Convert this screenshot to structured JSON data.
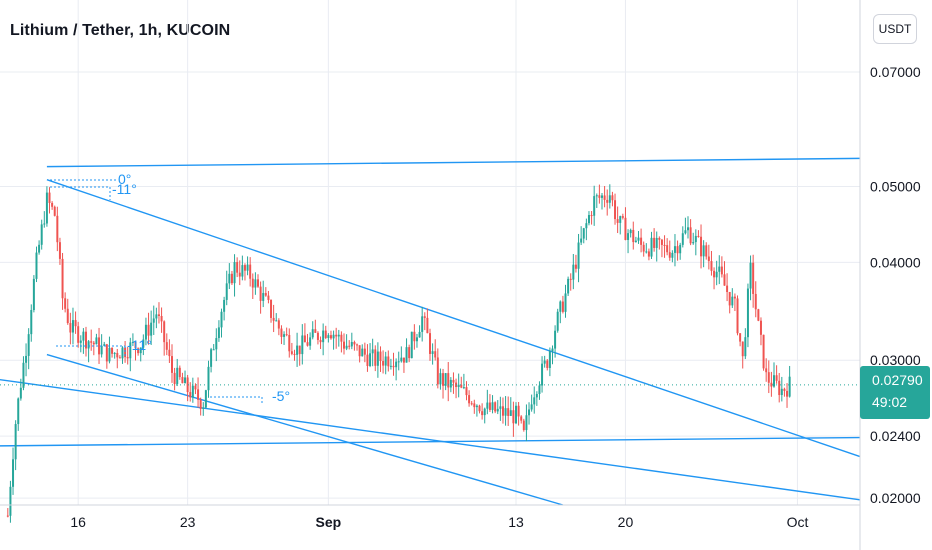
{
  "header": {
    "title": "Lithium / Tether, 1h, KUCOIN",
    "currency_button": "USDT"
  },
  "price_badge": {
    "price": "0.02790",
    "countdown": "49:02"
  },
  "colors": {
    "up": "#26a69a",
    "down": "#ef5350",
    "trendline": "#2196f3",
    "grid": "#e9ecf2",
    "axis_text": "#131722"
  },
  "annotations": [
    {
      "text": "0°"
    },
    {
      "text": "-11°"
    },
    {
      "text": "-11°"
    },
    {
      "text": "-5°"
    }
  ],
  "chart_data": {
    "type": "candlestick",
    "title": "Lithium / Tether, 1h, KUCOIN",
    "y_scale": "log",
    "ylim": [
      0.0196,
      0.0865
    ],
    "y_ticks": [
      "0.07000",
      "0.05000",
      "0.04000",
      "0.03000",
      "0.02400",
      "0.02000"
    ],
    "x_ticks": [
      "16",
      "23",
      "Sep",
      "13",
      "20",
      "Oct"
    ],
    "x_range": [
      "Aug 11",
      "Oct 5"
    ],
    "last_price": 0.0279,
    "path": [
      [
        "Aug 11 12:00",
        0.019
      ],
      [
        "Aug 12 00:00",
        0.025
      ],
      [
        "Aug 12 18:00",
        0.032
      ],
      [
        "Aug 13 08:00",
        0.04
      ],
      [
        "Aug 14 00:00",
        0.048
      ],
      [
        "Aug 14 12:00",
        0.046
      ],
      [
        "Aug 15 00:00",
        0.036
      ],
      [
        "Aug 15 12:00",
        0.033
      ],
      [
        "Aug 16 12:00",
        0.032
      ],
      [
        "Aug 18 00:00",
        0.0305
      ],
      [
        "Aug 20 00:00",
        0.0315
      ],
      [
        "Aug 21 00:00",
        0.0345
      ],
      [
        "Aug 22 00:00",
        0.029
      ],
      [
        "Aug 23 00:00",
        0.0275
      ],
      [
        "Aug 24 00:00",
        0.0265
      ],
      [
        "Aug 25 00:00",
        0.034
      ],
      [
        "Aug 26 00:00",
        0.0395
      ],
      [
        "Aug 27 00:00",
        0.0385
      ],
      [
        "Aug 28 00:00",
        0.0355
      ],
      [
        "Aug 29 00:00",
        0.0325
      ],
      [
        "Aug 30 00:00",
        0.031
      ],
      [
        "Sep 01 00:00",
        0.033
      ],
      [
        "Sep 02 00:00",
        0.0315
      ],
      [
        "Sep 04 00:00",
        0.03
      ],
      [
        "Sep 06 00:00",
        0.0305
      ],
      [
        "Sep 07 00:00",
        0.034
      ],
      [
        "Sep 08 00:00",
        0.0285
      ],
      [
        "Sep 10 00:00",
        0.027
      ],
      [
        "Sep 11 00:00",
        0.026
      ],
      [
        "Sep 13 00:00",
        0.0255
      ],
      [
        "Sep 13 12:00",
        0.024
      ],
      [
        "Sep 14 00:00",
        0.027
      ],
      [
        "Sep 15 00:00",
        0.03
      ],
      [
        "Sep 15 12:00",
        0.033
      ],
      [
        "Sep 16 12:00",
        0.038
      ],
      [
        "Sep 18 00:00",
        0.048
      ],
      [
        "Sep 19 00:00",
        0.049
      ],
      [
        "Sep 19 12:00",
        0.045
      ],
      [
        "Sep 21 00:00",
        0.042
      ],
      [
        "Sep 23 00:00",
        0.0415
      ],
      [
        "Sep 24 00:00",
        0.044
      ],
      [
        "Sep 26 00:00",
        0.0385
      ],
      [
        "Sep 27 00:00",
        0.035
      ],
      [
        "Sep 27 12:00",
        0.03
      ],
      [
        "Sep 28 00:00",
        0.039
      ],
      [
        "Sep 28 12:00",
        0.033
      ],
      [
        "Sep 29 00:00",
        0.0285
      ],
      [
        "Sep 30 00:00",
        0.0275
      ],
      [
        "Sep 30 12:00",
        0.0279
      ]
    ],
    "trendlines": [
      {
        "from": [
          "Aug 14 00:00",
          0.053
        ],
        "to": [
          "Oct 05 00:00",
          0.0543
        ]
      },
      {
        "from": [
          "Aug 14 00:00",
          0.051
        ],
        "to": [
          "Oct 05 00:00",
          0.0226
        ]
      },
      {
        "from": [
          "Aug 14 00:00",
          0.0305
        ],
        "to": [
          "Sep 16 00:00",
          0.0196
        ]
      },
      {
        "from": [
          "Aug 09 00:00",
          0.0287
        ],
        "to": [
          "Oct 05 00:00",
          0.0199
        ]
      },
      {
        "from": [
          "Aug 09 00:00",
          0.0233
        ],
        "to": [
          "Oct 05 00:00",
          0.0239
        ]
      }
    ]
  }
}
